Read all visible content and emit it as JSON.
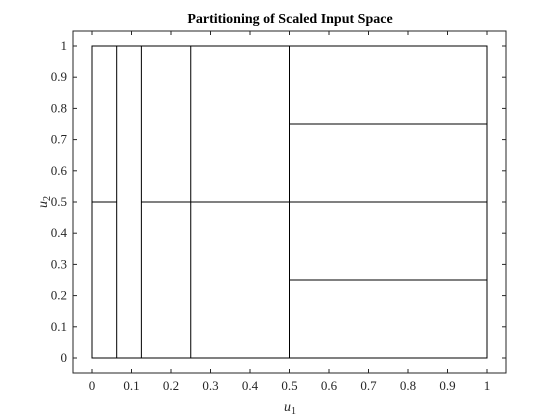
{
  "chart_data": {
    "type": "diagram",
    "title": "Partitioning of Scaled Input Space",
    "xlabel": "u",
    "xlabel_sub": "1",
    "ylabel": "u",
    "ylabel_sub": "2",
    "xlim": [
      0,
      1
    ],
    "ylim": [
      0,
      1
    ],
    "x_ticks": [
      "0",
      "0.1",
      "0.2",
      "0.3",
      "0.4",
      "0.5",
      "0.6",
      "0.7",
      "0.8",
      "0.9",
      "1"
    ],
    "y_ticks": [
      "0",
      "0.1",
      "0.2",
      "0.3",
      "0.4",
      "0.5",
      "0.6",
      "0.7",
      "0.8",
      "0.9",
      "1"
    ],
    "grid": false,
    "line_color": "#000000",
    "vertical_splits": [
      {
        "x": 0.0625,
        "y0": 0,
        "y1": 1
      },
      {
        "x": 0.125,
        "y0": 0,
        "y1": 1
      },
      {
        "x": 0.25,
        "y0": 0,
        "y1": 1
      },
      {
        "x": 0.5,
        "y0": 0,
        "y1": 1
      }
    ],
    "horizontal_splits": [
      {
        "y": 0.5,
        "x0": 0,
        "x1": 0.0625
      },
      {
        "y": 0.5,
        "x0": 0.125,
        "x1": 1
      },
      {
        "y": 0.75,
        "x0": 0.5,
        "x1": 1
      },
      {
        "y": 0.25,
        "x0": 0.5,
        "x1": 1
      }
    ]
  }
}
